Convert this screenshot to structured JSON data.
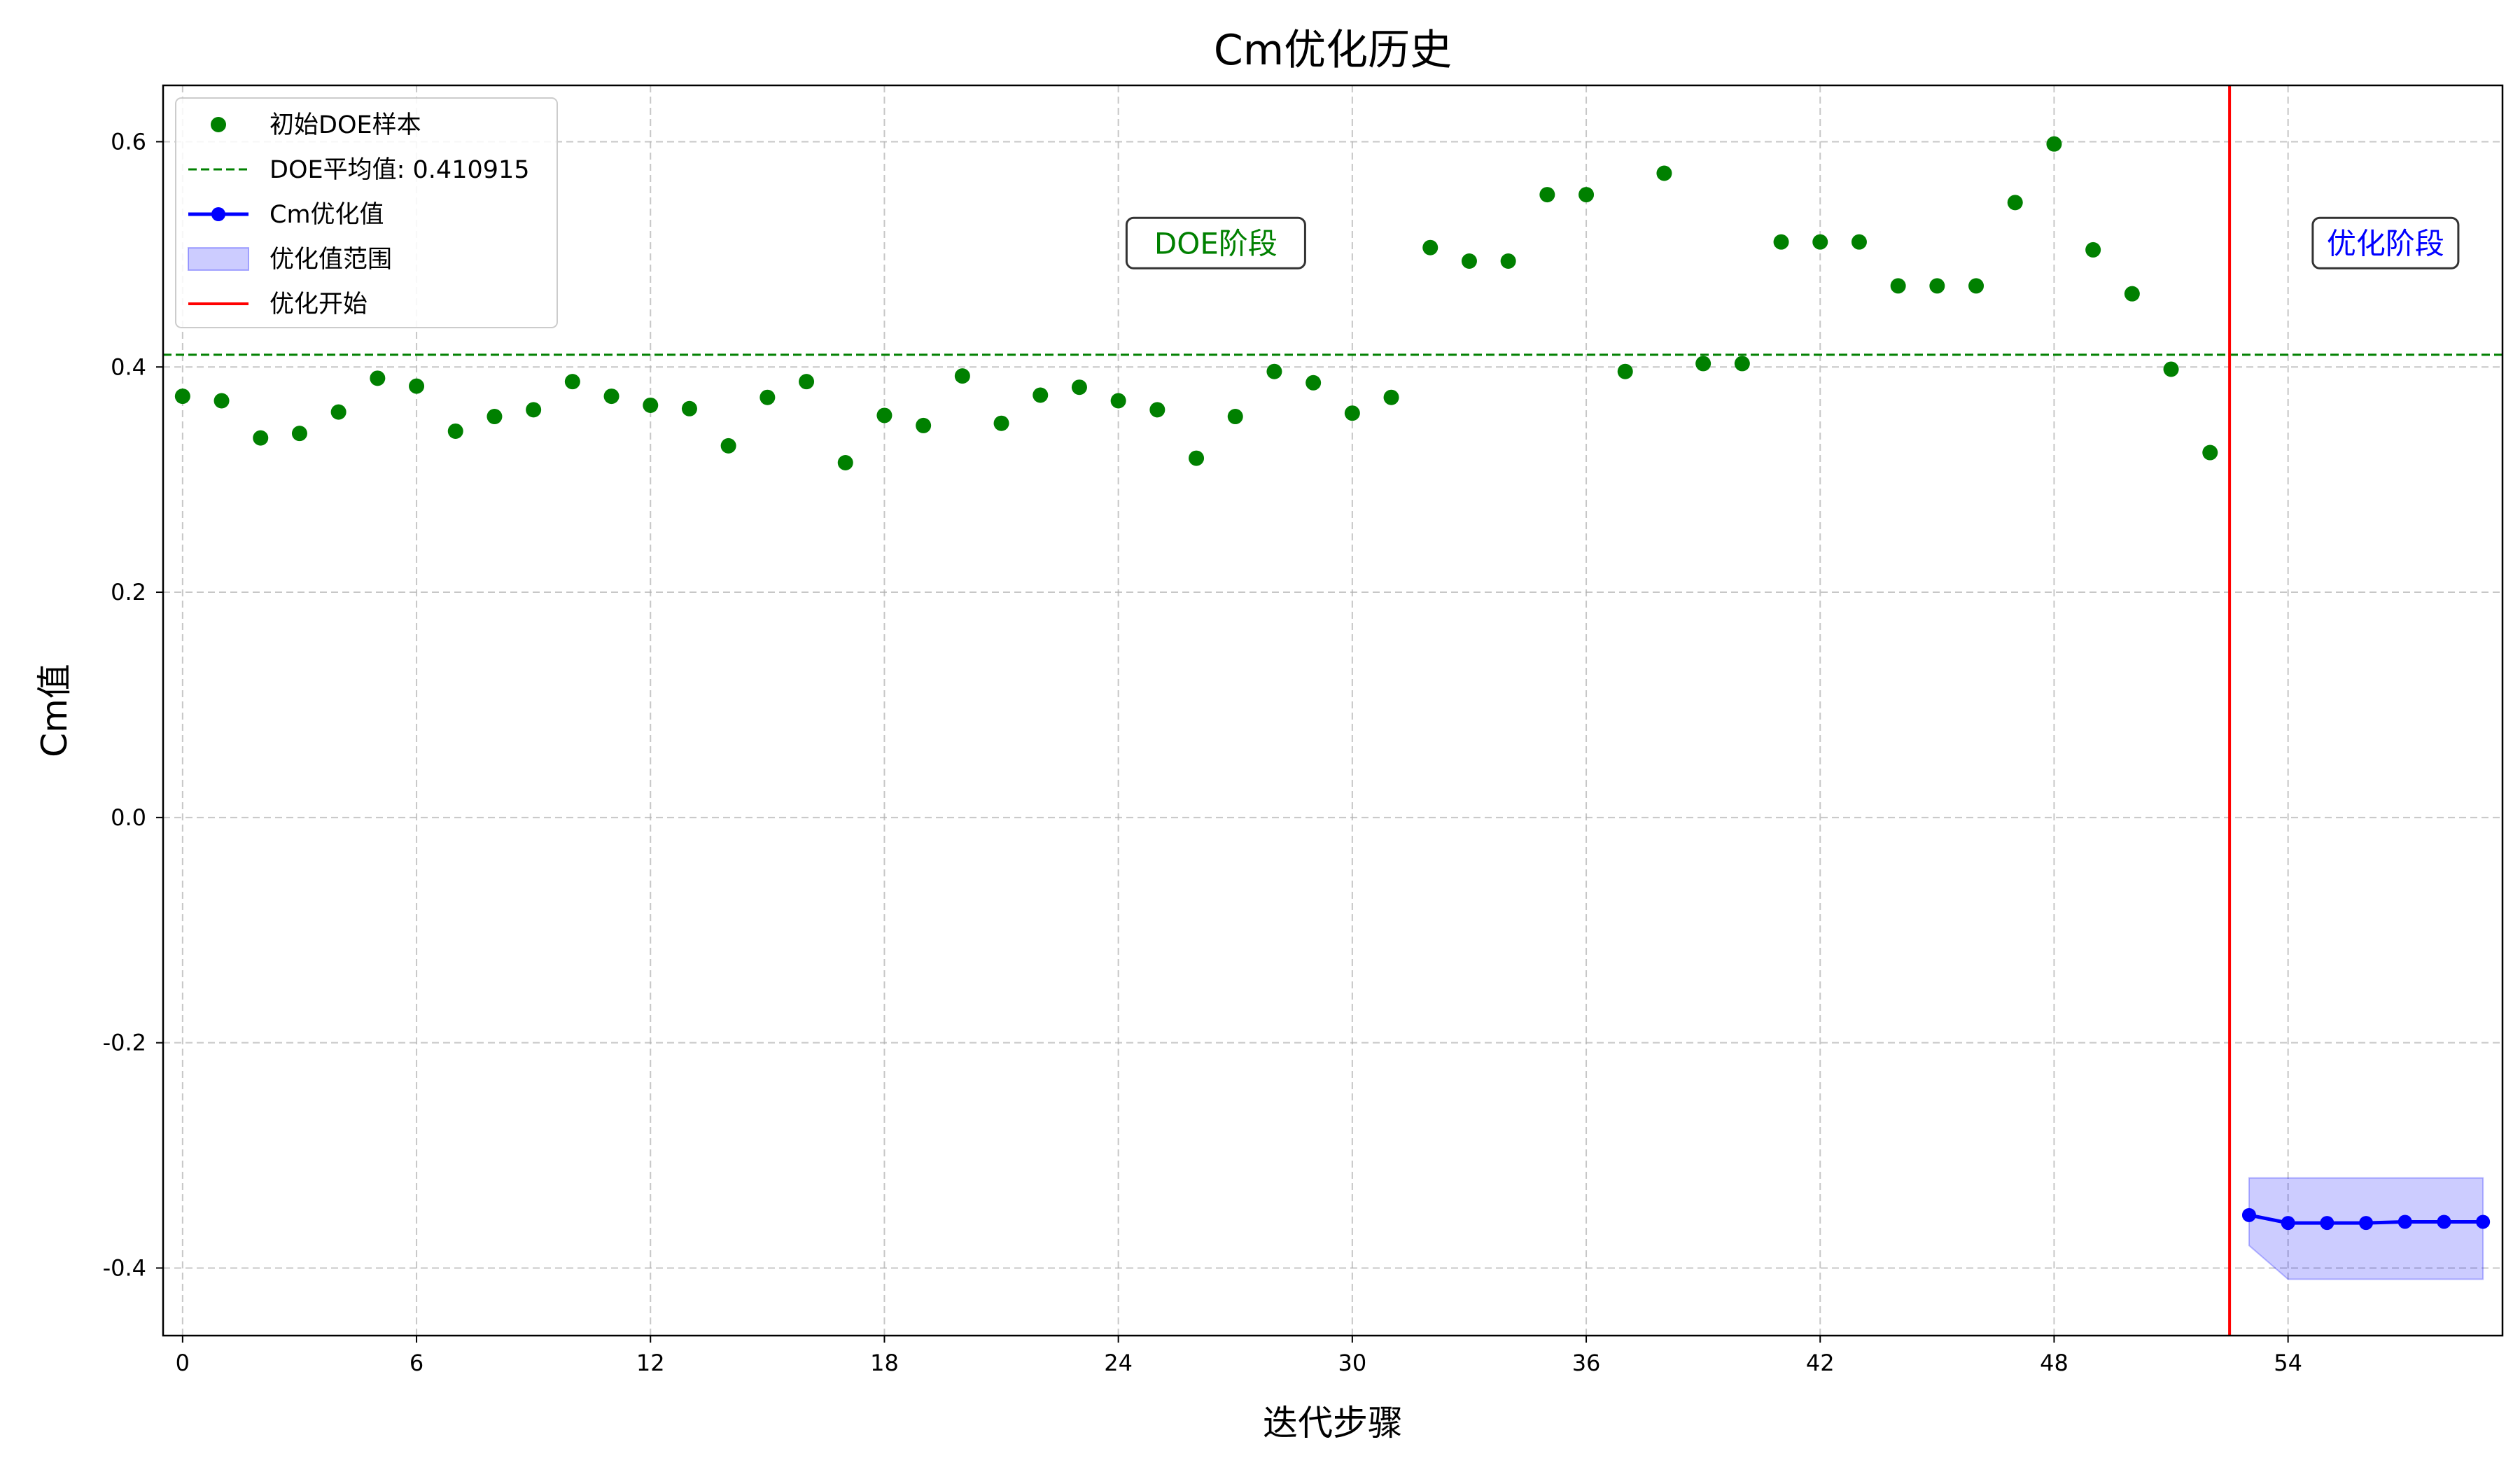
{
  "chart_data": {
    "type": "scatter",
    "title": "Cm优化历史",
    "xlabel": "迭代步骤",
    "ylabel": "Cm值",
    "xlim": [
      -0.5,
      59.5
    ],
    "ylim": [
      -0.46,
      0.65
    ],
    "xticks": [
      0,
      6,
      12,
      18,
      24,
      30,
      36,
      42,
      48,
      54
    ],
    "yticks": [
      -0.4,
      -0.2,
      0.0,
      0.2,
      0.4,
      0.6
    ],
    "ytick_labels": [
      "-0.4",
      "-0.2",
      "0.0",
      "0.2",
      "0.4",
      "0.6"
    ],
    "grid": true,
    "legend_position": "upper-left",
    "series": [
      {
        "name": "初始DOE样本",
        "kind": "scatter",
        "color": "#008000",
        "x": [
          0,
          1,
          2,
          3,
          4,
          5,
          6,
          7,
          8,
          9,
          10,
          11,
          12,
          13,
          14,
          15,
          16,
          17,
          18,
          19,
          20,
          21,
          22,
          23,
          24,
          25,
          26,
          27,
          28,
          29,
          30,
          31,
          32,
          33,
          34,
          35,
          36,
          37,
          38,
          39,
          40,
          41,
          42,
          43,
          44,
          45,
          46,
          47,
          48,
          49,
          50,
          51,
          52
        ],
        "y": [
          0.374,
          0.37,
          0.337,
          0.341,
          0.36,
          0.39,
          0.383,
          0.343,
          0.356,
          0.362,
          0.387,
          0.374,
          0.366,
          0.363,
          0.33,
          0.373,
          0.387,
          0.315,
          0.357,
          0.348,
          0.392,
          0.35,
          0.375,
          0.382,
          0.37,
          0.362,
          0.319,
          0.356,
          0.396,
          0.386,
          0.359,
          0.373,
          0.506,
          0.494,
          0.494,
          0.553,
          0.553,
          0.396,
          0.572,
          0.403,
          0.403,
          0.511,
          0.511,
          0.511,
          0.472,
          0.472,
          0.472,
          0.546,
          0.598,
          0.504,
          0.465,
          0.398,
          0.324
        ]
      },
      {
        "name": "DOE平均值: 0.410915",
        "kind": "hline",
        "color": "#008000",
        "y": 0.410915
      },
      {
        "name": "Cm优化值",
        "kind": "line-marker",
        "color": "#0000ff",
        "x": [
          53,
          54,
          55,
          56,
          57,
          58,
          59
        ],
        "y": [
          -0.353,
          -0.36,
          -0.36,
          -0.36,
          -0.359,
          -0.359,
          -0.359
        ]
      },
      {
        "name": "优化值范围",
        "kind": "band",
        "color": "#0000ff",
        "x": [
          53,
          54,
          55,
          56,
          57,
          58,
          59
        ],
        "lower": [
          -0.38,
          -0.41,
          -0.41,
          -0.41,
          -0.41,
          -0.41,
          -0.41
        ],
        "upper": [
          -0.32,
          -0.32,
          -0.32,
          -0.32,
          -0.32,
          -0.32,
          -0.32
        ]
      },
      {
        "name": "优化开始",
        "kind": "vline",
        "color": "#ff0000",
        "x": 52.5
      }
    ],
    "annotations": [
      {
        "text": "DOE阶段",
        "x": 26.5,
        "y": 0.51,
        "color": "#008000"
      },
      {
        "text": "优化阶段",
        "x": 56.5,
        "y": 0.51,
        "color": "#0000ff"
      }
    ]
  }
}
